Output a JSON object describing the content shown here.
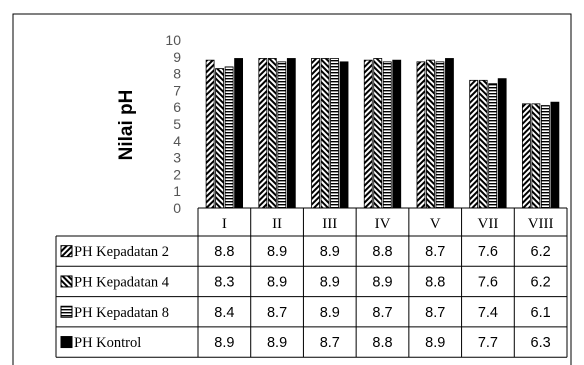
{
  "chart_data": {
    "type": "bar",
    "ylabel": "Nilai pH",
    "ylim": [
      0,
      10
    ],
    "y_ticks": [
      "0",
      "1",
      "2",
      "3",
      "4",
      "5",
      "6",
      "7",
      "8",
      "9",
      "10"
    ],
    "categories": [
      "I",
      "II",
      "III",
      "IV",
      "V",
      "VII",
      "VIII"
    ],
    "legend_placement": "data-table",
    "series": [
      {
        "name": "PH Kepadatan 2",
        "pattern": "diag-down",
        "color": "#000000",
        "values": [
          8.8,
          8.9,
          8.9,
          8.8,
          8.7,
          7.6,
          6.2
        ],
        "labels": [
          "8.8",
          "8.9",
          "8.9",
          "8.8",
          "8.7",
          "7.6",
          "6.2"
        ]
      },
      {
        "name": "PH Kepadatan 4",
        "pattern": "diag-up",
        "color": "#000000",
        "values": [
          8.3,
          8.9,
          8.9,
          8.9,
          8.8,
          7.6,
          6.2
        ],
        "labels": [
          "8.3",
          "8.9",
          "8.9",
          "8.9",
          "8.8",
          "7.6",
          "6.2"
        ]
      },
      {
        "name": "PH Kepadatan 8",
        "pattern": "horizontal",
        "color": "#000000",
        "values": [
          8.4,
          8.7,
          8.9,
          8.7,
          8.7,
          7.4,
          6.1
        ],
        "labels": [
          "8.4",
          "8.7",
          "8.9",
          "8.7",
          "8.7",
          "7.4",
          "6.1"
        ]
      },
      {
        "name": "PH Kontrol",
        "pattern": "solid",
        "color": "#000000",
        "values": [
          8.9,
          8.9,
          8.7,
          8.8,
          8.9,
          7.7,
          6.3
        ],
        "labels": [
          "8.9",
          "8.9",
          "8.7",
          "8.8",
          "8.9",
          "7.7",
          "6.3"
        ]
      }
    ]
  }
}
